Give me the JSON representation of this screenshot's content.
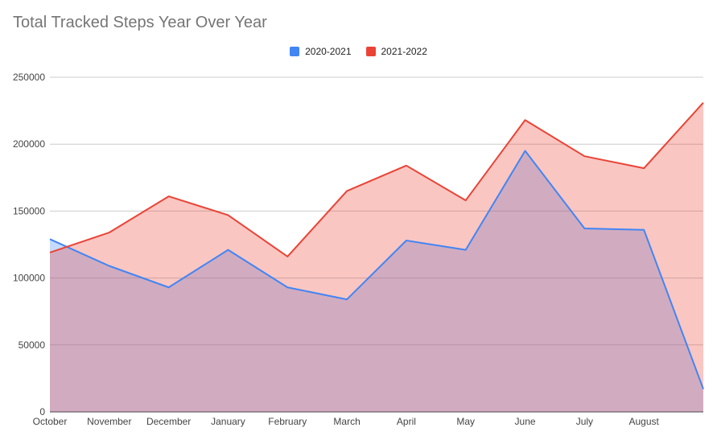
{
  "chart_data": {
    "type": "area",
    "title": "Total Tracked Steps Year Over Year",
    "xlabel": "",
    "ylabel": "",
    "ylim": [
      0,
      250000
    ],
    "yticks": [
      0,
      50000,
      100000,
      150000,
      200000,
      250000
    ],
    "ytick_labels": [
      "0",
      "50000",
      "100000",
      "150000",
      "200000",
      "250000"
    ],
    "categories": [
      "October",
      "November",
      "December",
      "January",
      "February",
      "March",
      "April",
      "May",
      "June",
      "July",
      "August",
      ""
    ],
    "grid": true,
    "legend_position": "top",
    "series": [
      {
        "name": "2020-2021",
        "color": "#4285f4",
        "values": [
          129000,
          109000,
          93000,
          121000,
          93000,
          84000,
          128000,
          121000,
          195000,
          137000,
          136000,
          17000
        ]
      },
      {
        "name": "2021-2022",
        "color": "#ea4335",
        "values": [
          119000,
          134000,
          161000,
          147000,
          116000,
          165000,
          184000,
          158000,
          218000,
          191000,
          182000,
          231000
        ]
      }
    ]
  }
}
